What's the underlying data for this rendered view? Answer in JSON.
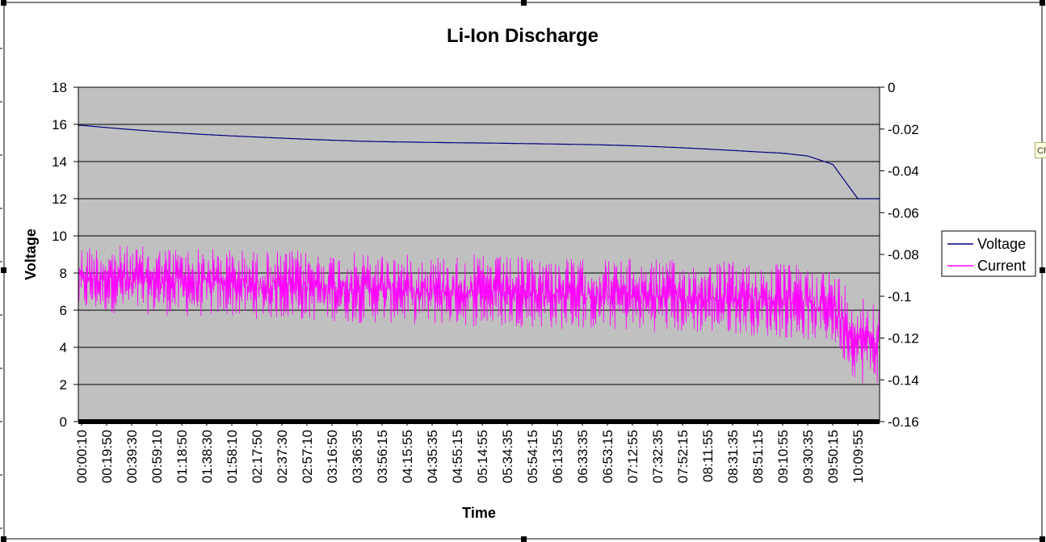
{
  "window": {
    "side_tab_label": "Ch"
  },
  "colors": {
    "plot_bg": "#c0c0c0",
    "voltage": "#000080",
    "current": "#ff00ff",
    "gridline": "#000000"
  },
  "chart_data": {
    "type": "line",
    "title": "Li-Ion Discharge",
    "xlabel": "Time",
    "ylabel": "Voltage",
    "ylim": [
      0,
      18
    ],
    "y2lim": [
      -0.16,
      0
    ],
    "y_ticks": [
      "0",
      "2",
      "4",
      "6",
      "8",
      "10",
      "12",
      "14",
      "16",
      "18"
    ],
    "y2_ticks": [
      "-0.16",
      "-0.14",
      "-0.12",
      "-0.1",
      "-0.08",
      "-0.06",
      "-0.04",
      "-0.02",
      "0"
    ],
    "grid": true,
    "legend_position": "right",
    "categories": [
      "00:00:10",
      "00:19:50",
      "00:39:30",
      "00:59:10",
      "01:18:50",
      "01:38:30",
      "01:58:10",
      "02:17:50",
      "02:37:30",
      "02:57:10",
      "03:16:50",
      "03:36:35",
      "03:56:15",
      "04:15:55",
      "04:35:35",
      "04:55:15",
      "05:14:55",
      "05:34:35",
      "05:54:15",
      "06:13:55",
      "06:33:35",
      "06:53:15",
      "07:12:55",
      "07:32:35",
      "07:52:15",
      "08:11:55",
      "08:31:35",
      "08:51:15",
      "09:10:55",
      "09:30:35",
      "09:50:15",
      "10:09:55"
    ],
    "series": [
      {
        "name": "Voltage",
        "axis": "left",
        "color": "#000080",
        "values": [
          15.95,
          15.83,
          15.72,
          15.62,
          15.53,
          15.45,
          15.38,
          15.32,
          15.26,
          15.2,
          15.15,
          15.1,
          15.07,
          15.05,
          15.03,
          15.01,
          15.0,
          14.98,
          14.96,
          14.94,
          14.92,
          14.89,
          14.85,
          14.8,
          14.74,
          14.67,
          14.6,
          14.52,
          14.45,
          14.3,
          13.85,
          12.0
        ]
      },
      {
        "name": "Current",
        "axis": "right",
        "color": "#ff00ff",
        "min_values": [
          -0.108,
          -0.108,
          -0.109,
          -0.109,
          -0.11,
          -0.11,
          -0.11,
          -0.111,
          -0.111,
          -0.112,
          -0.112,
          -0.113,
          -0.113,
          -0.113,
          -0.114,
          -0.114,
          -0.115,
          -0.115,
          -0.115,
          -0.116,
          -0.116,
          -0.116,
          -0.117,
          -0.117,
          -0.118,
          -0.118,
          -0.118,
          -0.119,
          -0.12,
          -0.121,
          -0.123,
          -0.142
        ],
        "max_values": [
          -0.075,
          -0.075,
          -0.076,
          -0.076,
          -0.076,
          -0.077,
          -0.077,
          -0.078,
          -0.078,
          -0.078,
          -0.079,
          -0.079,
          -0.079,
          -0.08,
          -0.08,
          -0.08,
          -0.08,
          -0.081,
          -0.081,
          -0.081,
          -0.082,
          -0.082,
          -0.082,
          -0.082,
          -0.083,
          -0.083,
          -0.083,
          -0.084,
          -0.084,
          -0.085,
          -0.087,
          -0.098
        ]
      }
    ]
  }
}
